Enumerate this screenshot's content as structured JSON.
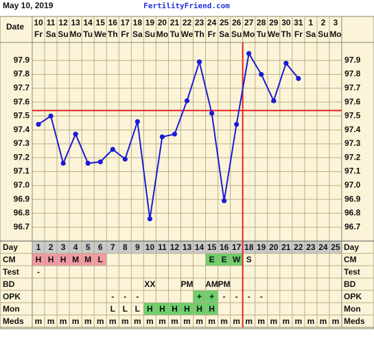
{
  "header": {
    "date": "May 10, 2019",
    "site": "FertilityFriend.com"
  },
  "chart_data": {
    "type": "line",
    "date_label": "Date",
    "categories": [
      "10",
      "11",
      "12",
      "13",
      "14",
      "15",
      "16",
      "17",
      "18",
      "19",
      "20",
      "21",
      "22",
      "23",
      "24",
      "25",
      "26",
      "27",
      "28",
      "29",
      "30",
      "31",
      "1",
      "2",
      "3"
    ],
    "weekdays": [
      "Fr",
      "Sa",
      "Su",
      "Mo",
      "Tu",
      "We",
      "Th",
      "Fr",
      "Sa",
      "Su",
      "Mo",
      "Tu",
      "We",
      "Th",
      "Fr",
      "Sa",
      "Su",
      "Mo",
      "Tu",
      "We",
      "Th",
      "Fr",
      "Sa",
      "Su",
      "Mo"
    ],
    "values": [
      97.44,
      97.5,
      97.16,
      97.37,
      97.16,
      97.17,
      97.26,
      97.19,
      97.46,
      96.76,
      97.35,
      97.37,
      97.61,
      97.89,
      97.52,
      96.89,
      97.44,
      97.95,
      97.8,
      97.61,
      97.88,
      97.77,
      null,
      null,
      null
    ],
    "color": "#1a1ad6",
    "ylim": [
      96.6,
      98.0
    ],
    "yticks": [
      96.7,
      96.8,
      96.9,
      {
        "value": 97,
        "label": "97.0"
      },
      97.1,
      97.2,
      97.3,
      97.4,
      97.5,
      97.6,
      97.7,
      97.8,
      97.9
    ],
    "grid": true,
    "coverline": 97.54,
    "marker_color": "#e32020",
    "ovulation_day": 17
  },
  "table": {
    "rows": [
      {
        "label": "Day",
        "background": "#c9c9c9",
        "cells": [
          1,
          2,
          3,
          4,
          5,
          6,
          7,
          8,
          9,
          10,
          11,
          12,
          13,
          14,
          15,
          16,
          17,
          18,
          19,
          20,
          21,
          22,
          23,
          24,
          25
        ]
      },
      {
        "label": "CM",
        "cells": [
          "H",
          "H",
          "H",
          "M",
          "M",
          "L",
          null,
          null,
          null,
          null,
          null,
          null,
          null,
          null,
          "E",
          "E",
          "W",
          "S",
          null,
          null,
          null,
          null,
          null,
          null,
          null
        ],
        "fills": [
          "#f39aa5",
          "#f39aa5",
          "#f39aa5",
          "#f39aa5",
          "#f39aa5",
          "#f39aa5",
          null,
          null,
          null,
          null,
          null,
          null,
          null,
          null,
          "#6dcf6d",
          "#6dcf6d",
          "#6dcf6d",
          null,
          null,
          null,
          null,
          null,
          null,
          null,
          null
        ]
      },
      {
        "label": "Test",
        "cells": [
          "-",
          null,
          null,
          null,
          null,
          null,
          null,
          null,
          null,
          null,
          null,
          null,
          null,
          null,
          null,
          null,
          null,
          null,
          null,
          null,
          null,
          null,
          null,
          null,
          null
        ]
      },
      {
        "label": "BD",
        "cells": [
          null,
          null,
          null,
          null,
          null,
          null,
          null,
          null,
          null,
          "XX",
          null,
          null,
          "PM",
          null,
          "AM",
          "PM",
          null,
          null,
          null,
          null,
          null,
          null,
          null,
          null,
          null
        ]
      },
      {
        "label": "OPK",
        "cells": [
          null,
          null,
          null,
          null,
          null,
          null,
          "-",
          "-",
          "-",
          null,
          null,
          null,
          null,
          "+",
          "+",
          "-",
          "-",
          "-",
          "-",
          null,
          null,
          null,
          null,
          null,
          null
        ],
        "fills": [
          null,
          null,
          null,
          null,
          null,
          null,
          null,
          null,
          null,
          null,
          null,
          null,
          null,
          "#6dcf6d",
          "#6dcf6d",
          null,
          null,
          null,
          null,
          null,
          null,
          null,
          null,
          null,
          null
        ]
      },
      {
        "label": "Mon",
        "cells": [
          null,
          null,
          null,
          null,
          null,
          null,
          "L",
          "L",
          "L",
          "H",
          "H",
          "H",
          "H",
          "H",
          "H",
          null,
          null,
          null,
          null,
          null,
          null,
          null,
          null,
          null,
          null
        ],
        "fills": [
          null,
          null,
          null,
          null,
          null,
          null,
          null,
          null,
          null,
          "#6dcf6d",
          "#6dcf6d",
          "#6dcf6d",
          "#6dcf6d",
          "#6dcf6d",
          "#6dcf6d",
          null,
          null,
          null,
          null,
          null,
          null,
          null,
          null,
          null,
          null
        ]
      },
      {
        "label": "Meds",
        "cells": [
          "m",
          "m",
          "m",
          "m",
          "m",
          "m",
          "m",
          "m",
          "m",
          "m",
          "m",
          "m",
          "m",
          "m",
          "m",
          "m",
          "m",
          "m",
          "m",
          "m",
          "m",
          "m",
          "m",
          "m",
          "m"
        ]
      }
    ]
  }
}
